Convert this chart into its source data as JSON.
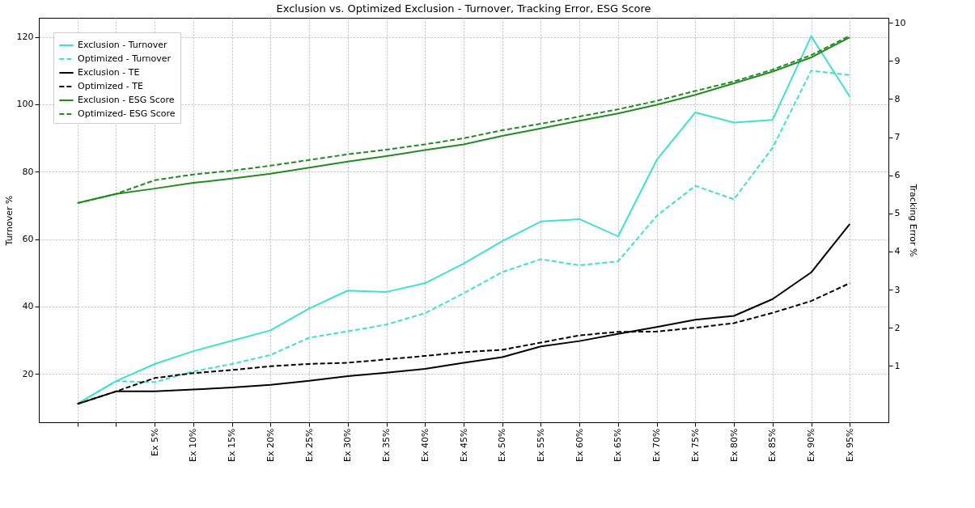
{
  "chart_data": {
    "type": "line",
    "title": "Exclusion vs. Optimized Exclusion - Turnover, Tracking Error, ESG Score",
    "ylabel": "Turnover %",
    "y2label": "Tracking Error %",
    "categories": [
      null,
      null,
      "Ex 5%",
      "Ex 10%",
      "Ex 15%",
      "Ex 20%",
      "Ex 25%",
      "Ex 30%",
      "Ex 35%",
      "Ex 40%",
      "Ex 45%",
      "Ex 50%",
      "Ex 55%",
      "Ex 60%",
      "Ex 65%",
      "Ex 70%",
      "Ex 75%",
      "Ex 80%",
      "Ex 85%",
      "Ex 90%",
      "Ex 95%"
    ],
    "series": [
      {
        "name": "Exclusion - Turnover",
        "color": "#40e0d0",
        "line_style": "solid",
        "values": [
          11.1,
          17.8,
          22.9,
          26.7,
          29.8,
          32.9,
          39.4,
          44.7,
          44.3,
          46.9,
          52.7,
          59.4,
          65.2,
          65.9,
          60.8,
          83.5,
          97.6,
          94.6,
          95.4,
          120.2,
          102.3
        ]
      },
      {
        "name": "Optimized - Turnover",
        "color": "#40e0d0",
        "line_style": "dashed",
        "values": [
          11.1,
          17.8,
          17.5,
          20.7,
          22.9,
          25.6,
          30.7,
          32.6,
          34.6,
          38.0,
          43.9,
          50.2,
          54.0,
          52.2,
          53.4,
          66.9,
          75.8,
          71.8,
          87.1,
          110.0,
          108.7
        ]
      },
      {
        "name": "Exclusion - TE",
        "color": "#000000",
        "line_style": "solid",
        "axis": "y2",
        "values": [
          0.0,
          0.33,
          0.33,
          0.38,
          0.43,
          0.5,
          0.61,
          0.73,
          0.82,
          0.92,
          1.08,
          1.23,
          1.51,
          1.65,
          1.84,
          2.02,
          2.21,
          2.31,
          2.75,
          3.45,
          4.72
        ]
      },
      {
        "name": "Optimized - TE",
        "color": "#000000",
        "line_style": "dashed",
        "axis": "y2",
        "values": [
          0.0,
          0.33,
          0.68,
          0.81,
          0.89,
          0.99,
          1.05,
          1.08,
          1.17,
          1.26,
          1.36,
          1.42,
          1.61,
          1.8,
          1.89,
          1.9,
          2.0,
          2.12,
          2.39,
          2.7,
          3.17
        ]
      },
      {
        "name": "Exclusion - ESG Score",
        "color": "#228b22",
        "line_style": "solid",
        "axis": "y2",
        "values": [
          5.27,
          5.51,
          5.65,
          5.8,
          5.91,
          6.04,
          6.2,
          6.36,
          6.5,
          6.66,
          6.81,
          7.03,
          7.23,
          7.43,
          7.62,
          7.85,
          8.11,
          8.41,
          8.72,
          9.09,
          9.62
        ]
      },
      {
        "name": "Optimized- ESG Score",
        "color": "#228b22",
        "line_style": "dashed",
        "axis": "y2",
        "values": [
          5.27,
          5.51,
          5.87,
          6.02,
          6.12,
          6.25,
          6.4,
          6.55,
          6.67,
          6.81,
          6.97,
          7.18,
          7.35,
          7.54,
          7.73,
          7.95,
          8.21,
          8.46,
          8.77,
          9.15,
          9.66
        ]
      }
    ],
    "ylim": [
      5.6,
      125.7
    ],
    "yticks": [
      20,
      40,
      60,
      80,
      100,
      120
    ],
    "y2lim": [
      -0.48,
      10.13
    ],
    "y2ticks": [
      1,
      2,
      3,
      4,
      5,
      6,
      7,
      8,
      9,
      10
    ],
    "grid": true,
    "legend": "top left"
  }
}
